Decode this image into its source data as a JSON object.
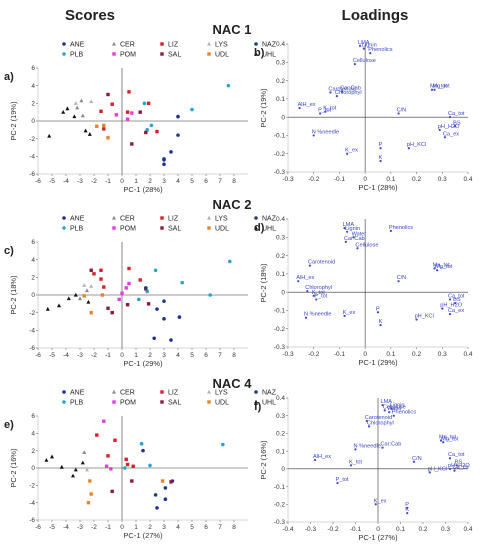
{
  "headers": {
    "scores": "Scores",
    "loadings": "Loadings"
  },
  "colors": {
    "ANE": "#1f2f9e",
    "PLB": "#29a3d6",
    "CER": "#8a8a8a",
    "POM": "#e839e8",
    "LIZ": "#d81f26",
    "SAL": "#8b1a3a",
    "LYS": "#b3b3b3",
    "UDL": "#e8842a",
    "NAZ": "#1c3f7a",
    "UHL": "#111111",
    "loading_label": "#3b45c8"
  },
  "legend": [
    {
      "name": "ANE",
      "shape": "circle",
      "color": "#1f2f9e"
    },
    {
      "name": "CER",
      "shape": "triangle",
      "color": "#8a8a8a"
    },
    {
      "name": "LIZ",
      "shape": "square",
      "color": "#d81f26"
    },
    {
      "name": "LYS",
      "shape": "triangle",
      "color": "#b3b3b3"
    },
    {
      "name": "NAZ",
      "shape": "circle",
      "color": "#1c3f7a"
    },
    {
      "name": "PLB",
      "shape": "circle",
      "color": "#29a3d6"
    },
    {
      "name": "POM",
      "shape": "square",
      "color": "#e839e8"
    },
    {
      "name": "SAL",
      "shape": "square",
      "color": "#8b1a3a"
    },
    {
      "name": "UDL",
      "shape": "square",
      "color": "#e8842a"
    },
    {
      "name": "UHL",
      "shape": "triangle",
      "color": "#111111"
    }
  ],
  "chart_data": [
    {
      "id": "a",
      "panel_label": "a)",
      "type": "scatter",
      "kind": "scores",
      "xlabel": "PC-1 (28%)",
      "ylabel": "PC-2 (19%)",
      "xlim": [
        -6,
        9
      ],
      "ylim": [
        -6,
        6
      ],
      "xticks": [
        -6,
        -5,
        -4,
        -3,
        -2,
        -1,
        0,
        1,
        2,
        3,
        4,
        5,
        6,
        7,
        8
      ],
      "yticks": [
        -6,
        -4,
        -2,
        0,
        2,
        4,
        6
      ],
      "series": [
        {
          "name": "ANE",
          "x": [
            3.0,
            3.5,
            4.0,
            3.0
          ],
          "y": [
            -4.3,
            -3.5,
            0.5,
            -4.9
          ]
        },
        {
          "name": "PLB",
          "x": [
            7.6,
            5.0,
            2.1,
            1.8,
            0.4,
            1.6
          ],
          "y": [
            4.0,
            1.3,
            -0.5,
            -1.0,
            0.2,
            2.0
          ]
        },
        {
          "name": "CER",
          "x": [
            -2.9,
            -2.8,
            -3.2
          ],
          "y": [
            2.3,
            0.6,
            1.5
          ]
        },
        {
          "name": "POM",
          "x": [
            0.7,
            -0.4,
            0.4
          ],
          "y": [
            0.9,
            0.7,
            0.2
          ]
        },
        {
          "name": "LIZ",
          "x": [
            0.5,
            1.9,
            -0.7,
            -1.5,
            0.4,
            -1.3,
            2.5
          ],
          "y": [
            3.3,
            2.0,
            1.9,
            1.1,
            1.0,
            -0.9,
            -1.2
          ]
        },
        {
          "name": "SAL",
          "x": [
            -1.0,
            1.3,
            1.7,
            0.7
          ],
          "y": [
            3.0,
            1.0,
            -1.3,
            -2.6
          ]
        },
        {
          "name": "LYS",
          "x": [
            -2.2,
            -3.3
          ],
          "y": [
            2.2,
            2.0
          ]
        },
        {
          "name": "UDL",
          "x": [
            -1.8,
            -1.3,
            -1.0
          ],
          "y": [
            -0.6,
            -0.5,
            -1.9
          ]
        },
        {
          "name": "NAZ",
          "x": [
            3.0,
            4.0
          ],
          "y": [
            -4.4,
            -1.6
          ]
        },
        {
          "name": "UHL",
          "x": [
            -4.2,
            -3.4,
            -5.2,
            -2.6,
            -2.3,
            -3.9
          ],
          "y": [
            1.0,
            0.5,
            -1.7,
            -1.1,
            -1.5,
            1.4
          ]
        }
      ]
    },
    {
      "id": "b",
      "panel_label": "b)",
      "title": "NAC 1",
      "type": "scatter",
      "kind": "loadings",
      "xlabel": "PC-1 (28%)",
      "ylabel": "PC-2 (19%)",
      "xlim": [
        -0.3,
        0.4
      ],
      "ylim": [
        -0.3,
        0.4
      ],
      "xticks": [
        -0.3,
        -0.2,
        -0.1,
        0,
        0.1,
        0.2,
        0.3,
        0.4
      ],
      "yticks": [
        -0.3,
        -0.2,
        -0.1,
        0,
        0.1,
        0.2,
        0.3,
        0.4
      ],
      "points": [
        {
          "label": "LMA",
          "x": -0.02,
          "y": 0.39
        },
        {
          "label": "Lignin",
          "x": -0.005,
          "y": 0.375
        },
        {
          "label": "Phenolics",
          "x": 0.02,
          "y": 0.35
        },
        {
          "label": "Cellulose",
          "x": -0.04,
          "y": 0.29
        },
        {
          "label": "Car:Cab",
          "x": -0.09,
          "y": 0.14
        },
        {
          "label": "Carotenoid",
          "x": -0.135,
          "y": 0.135
        },
        {
          "label": "Chlorophyl",
          "x": -0.11,
          "y": 0.115
        },
        {
          "label": "AlH_ex",
          "x": -0.255,
          "y": 0.05
        },
        {
          "label": "P_tot",
          "x": -0.175,
          "y": 0.02
        },
        {
          "label": "K_tot",
          "x": -0.155,
          "y": 0.03
        },
        {
          "label": "N %needle",
          "x": -0.2,
          "y": -0.1
        },
        {
          "label": "K_ex",
          "x": -0.07,
          "y": -0.2
        },
        {
          "label": "P",
          "x": 0.06,
          "y": -0.17
        },
        {
          "label": "K",
          "x": 0.06,
          "y": -0.24
        },
        {
          "label": "C/N",
          "x": 0.13,
          "y": 0.02
        },
        {
          "label": "pH_KCl",
          "x": 0.17,
          "y": -0.17
        },
        {
          "label": "Mn_tot",
          "x": 0.26,
          "y": 0.15
        },
        {
          "label": "Mg_tot",
          "x": 0.27,
          "y": 0.15
        },
        {
          "label": "Ca_tot",
          "x": 0.33,
          "y": 0.0
        },
        {
          "label": "BS",
          "x": 0.35,
          "y": -0.05
        },
        {
          "label": "pH_H2O",
          "x": 0.29,
          "y": -0.07
        },
        {
          "label": "Ca_ex",
          "x": 0.31,
          "y": -0.11
        }
      ]
    },
    {
      "id": "c",
      "panel_label": "c)",
      "type": "scatter",
      "kind": "scores",
      "xlabel": "PC-1 (29%)",
      "ylabel": "PC-2 (18%)",
      "xlim": [
        -6,
        9
      ],
      "ylim": [
        -6,
        6
      ],
      "xticks": [
        -6,
        -5,
        -4,
        -3,
        -2,
        -1,
        0,
        1,
        2,
        3,
        4,
        5,
        6,
        7,
        8
      ],
      "yticks": [
        -6,
        -4,
        -2,
        0,
        2,
        4,
        6
      ],
      "series": [
        {
          "name": "ANE",
          "x": [
            2.5,
            2.3,
            4.1,
            3.5,
            3.0
          ],
          "y": [
            -1.6,
            -4.9,
            -2.5,
            -5.1,
            -2.7
          ]
        },
        {
          "name": "PLB",
          "x": [
            7.7,
            6.3,
            4.3,
            1.8,
            1.2,
            2.4
          ],
          "y": [
            3.8,
            0.0,
            1.4,
            0.4,
            -0.5,
            2.8
          ]
        },
        {
          "name": "CER",
          "x": [
            -3.0,
            -2.5
          ],
          "y": [
            -0.4,
            0.5
          ]
        },
        {
          "name": "POM",
          "x": [
            0.3,
            0.5,
            0.0,
            -0.2
          ],
          "y": [
            0.8,
            1.3,
            0.2,
            -0.5
          ]
        },
        {
          "name": "LIZ",
          "x": [
            -1.5,
            -2.0,
            -1.5,
            -1.3,
            0.5,
            1.3
          ],
          "y": [
            2.8,
            2.4,
            1.8,
            0.9,
            3.0,
            1.7
          ]
        },
        {
          "name": "SAL",
          "x": [
            -2.2,
            1.9,
            1.7,
            -1.0,
            0.4,
            -0.7
          ],
          "y": [
            2.8,
            -1.0,
            0.7,
            -1.5,
            -1.1,
            -2.0
          ]
        },
        {
          "name": "LYS",
          "x": [
            -2.2,
            -2.7
          ],
          "y": [
            1.0,
            1.1
          ]
        },
        {
          "name": "UDL",
          "x": [
            -1.4,
            -2.7,
            -2.2
          ],
          "y": [
            0.0,
            -0.1,
            -2.0
          ]
        },
        {
          "name": "NAZ",
          "x": [
            1.7,
            3.0
          ],
          "y": [
            0.8,
            -0.7
          ]
        },
        {
          "name": "UHL",
          "x": [
            -3.8,
            -4.5,
            -5.3,
            -3.3,
            -2.4
          ],
          "y": [
            -0.4,
            -1.2,
            -1.6,
            0.0,
            -0.8
          ]
        }
      ]
    },
    {
      "id": "d",
      "panel_label": "d)",
      "title": "NAC 2",
      "type": "scatter",
      "kind": "loadings",
      "xlabel": "PC-1 (29%)",
      "ylabel": "PC-2 (18%)",
      "xlim": [
        -0.3,
        0.4
      ],
      "ylim": [
        -0.3,
        0.4
      ],
      "xticks": [
        -0.3,
        -0.2,
        -0.1,
        0,
        0.1,
        0.2,
        0.3,
        0.4
      ],
      "yticks": [
        -0.3,
        -0.2,
        -0.1,
        0,
        0.1,
        0.2,
        0.3,
        0.4
      ],
      "points": [
        {
          "label": "LMA",
          "x": -0.08,
          "y": 0.35
        },
        {
          "label": "Lignin",
          "x": -0.07,
          "y": 0.33
        },
        {
          "label": "Water",
          "x": -0.045,
          "y": 0.3
        },
        {
          "label": "Car:Cab",
          "x": -0.075,
          "y": 0.275
        },
        {
          "label": "Cellulose",
          "x": -0.03,
          "y": 0.24
        },
        {
          "label": "Phenolics",
          "x": 0.1,
          "y": 0.335
        },
        {
          "label": "Carotenoid",
          "x": -0.215,
          "y": 0.145
        },
        {
          "label": "AlH_ex",
          "x": -0.26,
          "y": 0.06
        },
        {
          "label": "Chlorophyl",
          "x": -0.225,
          "y": 0.005
        },
        {
          "label": "P_tot",
          "x": -0.19,
          "y": -0.04
        },
        {
          "label": "K_tot",
          "x": -0.2,
          "y": -0.02
        },
        {
          "label": "N %needle",
          "x": -0.23,
          "y": -0.14
        },
        {
          "label": "K_ex",
          "x": -0.08,
          "y": -0.13
        },
        {
          "label": "P",
          "x": 0.05,
          "y": -0.11
        },
        {
          "label": "K",
          "x": 0.06,
          "y": -0.18
        },
        {
          "label": "C/N",
          "x": 0.13,
          "y": 0.06
        },
        {
          "label": "pH_KCl",
          "x": 0.2,
          "y": -0.15
        },
        {
          "label": "Mn_tot",
          "x": 0.27,
          "y": 0.13
        },
        {
          "label": "Mg_tot",
          "x": 0.28,
          "y": 0.12
        },
        {
          "label": "Ca_tot",
          "x": 0.33,
          "y": -0.04
        },
        {
          "label": "BS",
          "x": 0.35,
          "y": -0.06
        },
        {
          "label": "pH_H2O",
          "x": 0.3,
          "y": -0.09
        },
        {
          "label": "Ca_ex",
          "x": 0.33,
          "y": -0.12
        }
      ]
    },
    {
      "id": "e",
      "panel_label": "e)",
      "type": "scatter",
      "kind": "scores",
      "xlabel": "PC-1 (27%)",
      "ylabel": "PC-2 (16%)",
      "xlim": [
        -6,
        9
      ],
      "ylim": [
        -6,
        6
      ],
      "xticks": [
        -6,
        -5,
        -4,
        -3,
        -2,
        -1,
        0,
        1,
        2,
        3,
        4,
        5,
        6,
        7,
        8
      ],
      "yticks": [
        -6,
        -4,
        -2,
        0,
        2,
        4,
        6
      ],
      "series": [
        {
          "name": "ANE",
          "x": [
            3.6,
            3.1,
            1.5,
            2.5
          ],
          "y": [
            -1.5,
            -3.6,
            2.0,
            -4.6
          ]
        },
        {
          "name": "PLB",
          "x": [
            7.2,
            1.4,
            0.2,
            2.0
          ],
          "y": [
            2.7,
            2.8,
            0.0,
            0.3
          ]
        },
        {
          "name": "CER",
          "x": [
            -2.7
          ],
          "y": [
            1.8
          ]
        },
        {
          "name": "POM",
          "x": [
            -1.3,
            -1.1,
            -0.8
          ],
          "y": [
            5.4,
            0.2,
            -0.1
          ]
        },
        {
          "name": "LIZ",
          "x": [
            -1.8,
            -0.5,
            -1.0,
            0.3,
            0.4,
            0.8
          ],
          "y": [
            3.8,
            3.2,
            1.4,
            1.0,
            0.4,
            0.2
          ]
        },
        {
          "name": "SAL",
          "x": [
            0.7,
            -0.7,
            3.5
          ],
          "y": [
            -1.5,
            -2.7,
            -1.6
          ]
        },
        {
          "name": "LYS",
          "x": [
            -2.5
          ],
          "y": [
            -0.2
          ]
        },
        {
          "name": "UDL",
          "x": [
            -2.3,
            -2.2,
            -2.4,
            2.9
          ],
          "y": [
            -1.5,
            -3.0,
            -4.0,
            -1.5
          ]
        },
        {
          "name": "NAZ",
          "x": [
            2.4,
            3.1
          ],
          "y": [
            -3.1,
            -2.3
          ]
        },
        {
          "name": "UHL",
          "x": [
            -5.4,
            -5.0,
            -4.3,
            -3.5,
            -2.8,
            -3.3
          ],
          "y": [
            0.9,
            1.3,
            0.1,
            -0.9,
            0.6,
            -0.2
          ]
        }
      ]
    },
    {
      "id": "f",
      "panel_label": "f)",
      "title": "NAC 4",
      "type": "scatter",
      "kind": "loadings",
      "xlabel": "PC-1 (27%)",
      "ylabel": "PC-2 (16%)",
      "xlim": [
        -0.4,
        0.4
      ],
      "ylim": [
        -0.3,
        0.4
      ],
      "xticks": [
        -0.4,
        -0.3,
        -0.2,
        -0.1,
        0,
        0.1,
        0.2,
        0.3,
        0.4
      ],
      "yticks": [
        -0.3,
        -0.2,
        -0.1,
        0,
        0.1,
        0.2,
        0.3,
        0.4
      ],
      "points": [
        {
          "label": "LMA",
          "x": 0.02,
          "y": 0.36
        },
        {
          "label": "Lignin",
          "x": 0.06,
          "y": 0.34
        },
        {
          "label": "Cellulose",
          "x": 0.03,
          "y": 0.33
        },
        {
          "label": "Water",
          "x": 0.05,
          "y": 0.32
        },
        {
          "label": "Phenolics",
          "x": 0.07,
          "y": 0.3
        },
        {
          "label": "Carotenoid",
          "x": -0.05,
          "y": 0.27
        },
        {
          "label": "Chlorophyl",
          "x": -0.04,
          "y": 0.24
        },
        {
          "label": "Car:Cab",
          "x": 0.02,
          "y": 0.12
        },
        {
          "label": "AlH_ex",
          "x": -0.28,
          "y": 0.05
        },
        {
          "label": "N %needle",
          "x": -0.1,
          "y": 0.11
        },
        {
          "label": "K_tot",
          "x": -0.12,
          "y": 0.02
        },
        {
          "label": "P_tot",
          "x": -0.18,
          "y": -0.08
        },
        {
          "label": "K_ex",
          "x": -0.01,
          "y": -0.2
        },
        {
          "label": "P",
          "x": 0.13,
          "y": -0.22
        },
        {
          "label": "K",
          "x": 0.13,
          "y": -0.25
        },
        {
          "label": "C/N",
          "x": 0.16,
          "y": 0.04
        },
        {
          "label": "pH_KCl",
          "x": 0.23,
          "y": -0.02
        },
        {
          "label": "Mn_tot",
          "x": 0.28,
          "y": 0.16
        },
        {
          "label": "Mg_tot",
          "x": 0.29,
          "y": 0.15
        },
        {
          "label": "Ca_tot",
          "x": 0.32,
          "y": 0.06
        },
        {
          "label": "BS",
          "x": 0.35,
          "y": 0.02
        },
        {
          "label": "pH_H2O",
          "x": 0.32,
          "y": 0.0
        },
        {
          "label": "Ca_ex",
          "x": 0.34,
          "y": -0.01
        }
      ]
    }
  ]
}
